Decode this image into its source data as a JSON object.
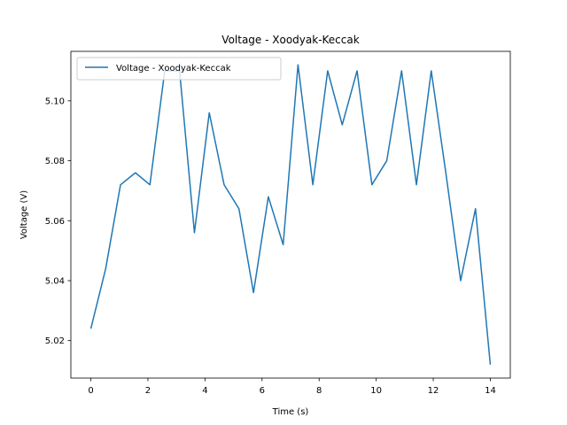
{
  "chart_data": {
    "type": "line",
    "title": "Voltage - Xoodyak-Keccak",
    "xlabel": "Time (s)",
    "ylabel": "Voltage (V)",
    "xlim": [
      -0.7,
      14.7
    ],
    "ylim": [
      5.0075,
      5.1165
    ],
    "xticks": [
      0,
      2,
      4,
      6,
      8,
      10,
      12,
      14
    ],
    "xtick_labels": [
      "0",
      "2",
      "4",
      "6",
      "8",
      "10",
      "12",
      "14"
    ],
    "yticks": [
      5.02,
      5.04,
      5.06,
      5.08,
      5.1
    ],
    "ytick_labels": [
      "5.02",
      "5.04",
      "5.06",
      "5.08",
      "5.10"
    ],
    "grid": false,
    "legend_position": "upper-left",
    "series": [
      {
        "name": "Voltage - Xoodyak-Keccak",
        "color": "#1f77b4",
        "x": [
          0.0,
          0.52,
          1.04,
          1.56,
          2.07,
          2.59,
          3.11,
          3.63,
          4.15,
          4.67,
          5.19,
          5.7,
          6.22,
          6.74,
          7.26,
          7.78,
          8.3,
          8.81,
          9.33,
          9.85,
          10.37,
          10.89,
          11.41,
          11.93,
          12.44,
          12.96,
          13.48,
          14.0
        ],
        "y": [
          5.024,
          5.044,
          5.072,
          5.076,
          5.072,
          5.11,
          5.11,
          5.056,
          5.096,
          5.072,
          5.064,
          5.036,
          5.068,
          5.052,
          5.112,
          5.072,
          5.11,
          5.092,
          5.11,
          5.072,
          5.08,
          5.11,
          5.072,
          5.11,
          5.076,
          5.04,
          5.064,
          5.012
        ]
      }
    ]
  }
}
